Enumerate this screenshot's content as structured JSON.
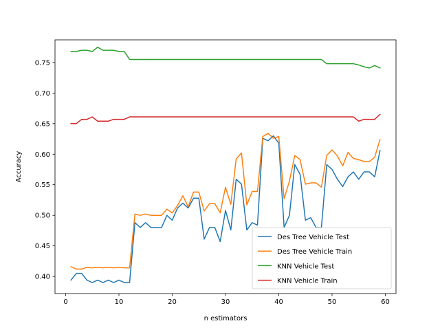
{
  "chart_data": {
    "type": "line",
    "xlabel": "n estimators",
    "ylabel": "Accuracy",
    "xlim": [
      -2.0,
      62.0
    ],
    "ylim": [
      0.372,
      0.787
    ],
    "xticks": [
      0,
      10,
      20,
      30,
      40,
      50,
      60
    ],
    "yticks": [
      0.4,
      0.45,
      0.5,
      0.55,
      0.6,
      0.65,
      0.7,
      0.75
    ],
    "ytick_labels": [
      "0.40",
      "0.45",
      "0.50",
      "0.55",
      "0.60",
      "0.65",
      "0.70",
      "0.75"
    ],
    "grid": false,
    "legend_position": "lower-right",
    "x": [
      1,
      2,
      3,
      4,
      5,
      6,
      7,
      8,
      9,
      10,
      11,
      12,
      13,
      14,
      15,
      16,
      17,
      18,
      19,
      20,
      21,
      22,
      23,
      24,
      25,
      26,
      27,
      28,
      29,
      30,
      31,
      32,
      33,
      34,
      35,
      36,
      37,
      38,
      39,
      40,
      41,
      42,
      43,
      44,
      45,
      46,
      47,
      48,
      49,
      50,
      51,
      52,
      53,
      54,
      55,
      56,
      57,
      58,
      59
    ],
    "series": [
      {
        "name": "Des Tree Vehicle Test",
        "color": "#1f77b4",
        "values": [
          0.394,
          0.405,
          0.405,
          0.394,
          0.39,
          0.394,
          0.39,
          0.394,
          0.39,
          0.394,
          0.39,
          0.39,
          0.488,
          0.48,
          0.488,
          0.48,
          0.48,
          0.48,
          0.5,
          0.492,
          0.512,
          0.52,
          0.512,
          0.528,
          0.528,
          0.461,
          0.48,
          0.48,
          0.457,
          0.508,
          0.476,
          0.559,
          0.551,
          0.476,
          0.488,
          0.484,
          0.626,
          0.622,
          0.63,
          0.618,
          0.48,
          0.5,
          0.583,
          0.567,
          0.492,
          0.496,
          0.48,
          0.48,
          0.583,
          0.575,
          0.559,
          0.547,
          0.563,
          0.571,
          0.559,
          0.571,
          0.571,
          0.563,
          0.606
        ]
      },
      {
        "name": "Des Tree Vehicle Train",
        "color": "#ff7f0e",
        "values": [
          0.416,
          0.412,
          0.412,
          0.415,
          0.414,
          0.415,
          0.414,
          0.415,
          0.414,
          0.415,
          0.414,
          0.414,
          0.502,
          0.5,
          0.502,
          0.5,
          0.5,
          0.5,
          0.51,
          0.504,
          0.516,
          0.532,
          0.514,
          0.538,
          0.538,
          0.507,
          0.519,
          0.519,
          0.504,
          0.546,
          0.518,
          0.592,
          0.602,
          0.517,
          0.539,
          0.539,
          0.629,
          0.634,
          0.626,
          0.629,
          0.527,
          0.556,
          0.598,
          0.591,
          0.551,
          0.553,
          0.553,
          0.546,
          0.598,
          0.607,
          0.597,
          0.581,
          0.603,
          0.593,
          0.591,
          0.588,
          0.588,
          0.595,
          0.624
        ]
      },
      {
        "name": "KNN Vehicle Test",
        "color": "#2ca02c",
        "values": [
          0.768,
          0.768,
          0.77,
          0.77,
          0.768,
          0.775,
          0.77,
          0.77,
          0.77,
          0.768,
          0.768,
          0.755,
          0.755,
          0.755,
          0.755,
          0.755,
          0.755,
          0.755,
          0.755,
          0.755,
          0.755,
          0.755,
          0.755,
          0.755,
          0.755,
          0.755,
          0.755,
          0.755,
          0.755,
          0.755,
          0.755,
          0.755,
          0.755,
          0.755,
          0.755,
          0.755,
          0.755,
          0.755,
          0.755,
          0.755,
          0.755,
          0.755,
          0.755,
          0.755,
          0.755,
          0.755,
          0.755,
          0.755,
          0.748,
          0.748,
          0.748,
          0.748,
          0.748,
          0.748,
          0.746,
          0.743,
          0.741,
          0.745,
          0.741
        ]
      },
      {
        "name": "KNN Vehicle Train",
        "color": "#d62728",
        "values": [
          0.65,
          0.65,
          0.657,
          0.657,
          0.661,
          0.654,
          0.654,
          0.654,
          0.657,
          0.657,
          0.657,
          0.661,
          0.661,
          0.661,
          0.661,
          0.661,
          0.661,
          0.661,
          0.661,
          0.661,
          0.661,
          0.661,
          0.661,
          0.661,
          0.661,
          0.661,
          0.661,
          0.661,
          0.661,
          0.661,
          0.661,
          0.661,
          0.661,
          0.661,
          0.661,
          0.661,
          0.661,
          0.661,
          0.661,
          0.661,
          0.661,
          0.661,
          0.661,
          0.661,
          0.661,
          0.661,
          0.661,
          0.661,
          0.661,
          0.661,
          0.661,
          0.661,
          0.661,
          0.661,
          0.654,
          0.657,
          0.657,
          0.657,
          0.665
        ]
      }
    ]
  }
}
